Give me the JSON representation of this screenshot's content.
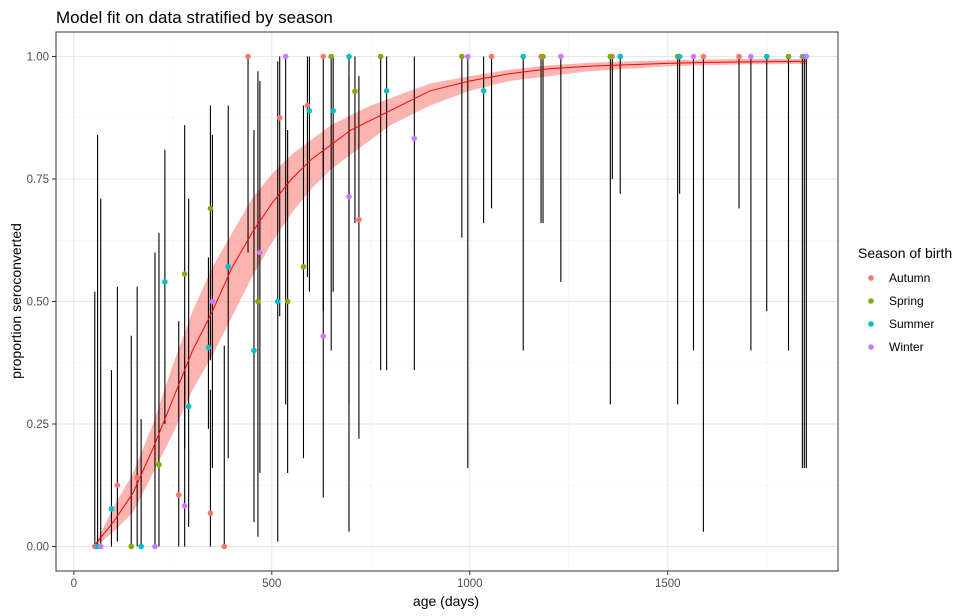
{
  "chart_data": {
    "type": "scatter",
    "title": "Model fit on data stratified by season",
    "xlabel": "age (days)",
    "ylabel": "proportion seroconverted",
    "xlim": [
      -45,
      1930
    ],
    "ylim": [
      -0.05,
      1.05
    ],
    "x_ticks": [
      0,
      500,
      1000,
      1500
    ],
    "y_ticks": [
      0.0,
      0.25,
      0.5,
      0.75,
      1.0
    ],
    "x_tick_labels": [
      "0",
      "500",
      "1000",
      "1500"
    ],
    "y_tick_labels": [
      "0.00",
      "0.25",
      "0.50",
      "0.75",
      "1.00"
    ],
    "grid": true,
    "legend": {
      "title": "Season of birth",
      "placement": "right",
      "entries": [
        {
          "name": "Autumn",
          "color": "#F8766D"
        },
        {
          "name": "Spring",
          "color": "#7CAE00"
        },
        {
          "name": "Summer",
          "color": "#00BFC4"
        },
        {
          "name": "Winter",
          "color": "#C77CFF"
        }
      ]
    },
    "fit": {
      "color": "#FF0000",
      "ribbon_color": "#F8766D",
      "x": [
        50,
        70,
        100,
        150,
        200,
        250,
        300,
        350,
        400,
        450,
        500,
        550,
        600,
        650,
        700,
        750,
        800,
        850,
        900,
        1000,
        1100,
        1200,
        1300,
        1400,
        1500,
        1600,
        1700,
        1850
      ],
      "y": [
        0.0,
        0.02,
        0.05,
        0.11,
        0.2,
        0.3,
        0.4,
        0.48,
        0.57,
        0.64,
        0.7,
        0.75,
        0.79,
        0.82,
        0.85,
        0.87,
        0.89,
        0.91,
        0.93,
        0.95,
        0.965,
        0.975,
        0.98,
        0.983,
        0.986,
        0.988,
        0.989,
        0.99
      ],
      "lower": [
        0.0,
        0.01,
        0.03,
        0.07,
        0.15,
        0.23,
        0.32,
        0.39,
        0.47,
        0.55,
        0.62,
        0.68,
        0.73,
        0.77,
        0.8,
        0.83,
        0.86,
        0.88,
        0.9,
        0.93,
        0.95,
        0.96,
        0.97,
        0.975,
        0.98,
        0.982,
        0.984,
        0.985
      ],
      "upper": [
        0.0,
        0.03,
        0.08,
        0.15,
        0.25,
        0.37,
        0.48,
        0.57,
        0.64,
        0.71,
        0.76,
        0.8,
        0.83,
        0.86,
        0.88,
        0.9,
        0.915,
        0.93,
        0.945,
        0.96,
        0.973,
        0.982,
        0.987,
        0.99,
        0.992,
        0.994,
        0.995,
        0.995
      ]
    },
    "series": [
      {
        "name": "Autumn",
        "color": "#F8766D",
        "points": [
          {
            "x": 53,
            "y": 0.0,
            "lo": 0.0,
            "hi": 0.52
          },
          {
            "x": 110,
            "y": 0.125,
            "lo": 0.01,
            "hi": 0.53
          },
          {
            "x": 160,
            "y": 0.14,
            "lo": 0.0,
            "hi": 0.53
          },
          {
            "x": 265,
            "y": 0.105,
            "lo": 0.0,
            "hi": 0.46
          },
          {
            "x": 345,
            "y": 0.068,
            "lo": 0.0,
            "hi": 0.32
          },
          {
            "x": 380,
            "y": 0.0,
            "lo": 0.0,
            "hi": 0.41
          },
          {
            "x": 440,
            "y": 1.0,
            "lo": 0.6,
            "hi": 1.0
          },
          {
            "x": 520,
            "y": 0.875,
            "lo": 0.47,
            "hi": 1.0
          },
          {
            "x": 590,
            "y": 0.9,
            "lo": 0.55,
            "hi": 1.0
          },
          {
            "x": 630,
            "y": 1.0,
            "lo": 0.48,
            "hi": 1.0
          },
          {
            "x": 720,
            "y": 0.667,
            "lo": 0.22,
            "hi": 0.96
          },
          {
            "x": 1055,
            "y": 1.0,
            "lo": 0.69,
            "hi": 1.0
          },
          {
            "x": 1180,
            "y": 1.0,
            "lo": 0.66,
            "hi": 1.0
          },
          {
            "x": 1360,
            "y": 1.0,
            "lo": 0.75,
            "hi": 1.0
          },
          {
            "x": 1590,
            "y": 1.0,
            "lo": 0.03,
            "hi": 1.0
          },
          {
            "x": 1680,
            "y": 1.0,
            "lo": 0.69,
            "hi": 1.0
          },
          {
            "x": 1840,
            "y": 1.0,
            "lo": 0.16,
            "hi": 1.0
          }
        ]
      },
      {
        "name": "Spring",
        "color": "#7CAE00",
        "points": [
          {
            "x": 145,
            "y": 0.0,
            "lo": 0.0,
            "hi": 0.43
          },
          {
            "x": 215,
            "y": 0.167,
            "lo": 0.0,
            "hi": 0.64
          },
          {
            "x": 280,
            "y": 0.556,
            "lo": 0.2,
            "hi": 0.86
          },
          {
            "x": 345,
            "y": 0.69,
            "lo": 0.38,
            "hi": 0.9
          },
          {
            "x": 465,
            "y": 0.5,
            "lo": 0.02,
            "hi": 0.97
          },
          {
            "x": 540,
            "y": 0.5,
            "lo": 0.15,
            "hi": 0.85
          },
          {
            "x": 580,
            "y": 0.571,
            "lo": 0.18,
            "hi": 0.9
          },
          {
            "x": 650,
            "y": 1.0,
            "lo": 0.4,
            "hi": 1.0
          },
          {
            "x": 710,
            "y": 0.929,
            "lo": 0.66,
            "hi": 1.0
          },
          {
            "x": 775,
            "y": 1.0,
            "lo": 0.36,
            "hi": 1.0
          },
          {
            "x": 980,
            "y": 1.0,
            "lo": 0.63,
            "hi": 1.0
          },
          {
            "x": 1185,
            "y": 1.0,
            "lo": 0.66,
            "hi": 1.0
          },
          {
            "x": 1355,
            "y": 1.0,
            "lo": 0.29,
            "hi": 1.0
          },
          {
            "x": 1525,
            "y": 1.0,
            "lo": 0.29,
            "hi": 1.0
          },
          {
            "x": 1805,
            "y": 1.0,
            "lo": 0.4,
            "hi": 1.0
          }
        ]
      },
      {
        "name": "Summer",
        "color": "#00BFC4",
        "points": [
          {
            "x": 60,
            "y": 0.0,
            "lo": 0.0,
            "hi": 0.84
          },
          {
            "x": 95,
            "y": 0.077,
            "lo": 0.0,
            "hi": 0.36
          },
          {
            "x": 170,
            "y": 0.0,
            "lo": 0.0,
            "hi": 0.26
          },
          {
            "x": 230,
            "y": 0.54,
            "lo": 0.25,
            "hi": 0.81
          },
          {
            "x": 290,
            "y": 0.286,
            "lo": 0.04,
            "hi": 0.71
          },
          {
            "x": 340,
            "y": 0.406,
            "lo": 0.24,
            "hi": 0.59
          },
          {
            "x": 390,
            "y": 0.571,
            "lo": 0.18,
            "hi": 0.9
          },
          {
            "x": 455,
            "y": 0.4,
            "lo": 0.05,
            "hi": 0.85
          },
          {
            "x": 515,
            "y": 0.5,
            "lo": 0.01,
            "hi": 0.99
          },
          {
            "x": 595,
            "y": 0.889,
            "lo": 0.52,
            "hi": 1.0
          },
          {
            "x": 655,
            "y": 0.889,
            "lo": 0.52,
            "hi": 1.0
          },
          {
            "x": 695,
            "y": 1.0,
            "lo": 0.03,
            "hi": 1.0
          },
          {
            "x": 790,
            "y": 0.93,
            "lo": 0.36,
            "hi": 1.0
          },
          {
            "x": 1135,
            "y": 1.0,
            "lo": 0.4,
            "hi": 1.0
          },
          {
            "x": 1380,
            "y": 1.0,
            "lo": 0.72,
            "hi": 1.0
          },
          {
            "x": 1035,
            "y": 0.93,
            "lo": 0.66,
            "hi": 1.0
          },
          {
            "x": 1530,
            "y": 1.0,
            "lo": 0.72,
            "hi": 1.0
          },
          {
            "x": 1750,
            "y": 1.0,
            "lo": 0.48,
            "hi": 1.0
          },
          {
            "x": 1845,
            "y": 1.0,
            "lo": 0.16,
            "hi": 1.0
          }
        ]
      },
      {
        "name": "Winter",
        "color": "#C77CFF",
        "points": [
          {
            "x": 68,
            "y": 0.0,
            "lo": 0.0,
            "hi": 0.71
          },
          {
            "x": 205,
            "y": 0.0,
            "lo": 0.0,
            "hi": 0.6
          },
          {
            "x": 280,
            "y": 0.083,
            "lo": 0.0,
            "hi": 0.38
          },
          {
            "x": 350,
            "y": 0.5,
            "lo": 0.16,
            "hi": 0.84
          },
          {
            "x": 470,
            "y": 0.6,
            "lo": 0.15,
            "hi": 0.95
          },
          {
            "x": 535,
            "y": 1.0,
            "lo": 0.29,
            "hi": 1.0
          },
          {
            "x": 630,
            "y": 0.429,
            "lo": 0.1,
            "hi": 0.82
          },
          {
            "x": 695,
            "y": 0.714,
            "lo": 0.29,
            "hi": 0.96
          },
          {
            "x": 860,
            "y": 0.833,
            "lo": 0.36,
            "hi": 1.0
          },
          {
            "x": 995,
            "y": 1.0,
            "lo": 0.16,
            "hi": 1.0
          },
          {
            "x": 1230,
            "y": 1.0,
            "lo": 0.54,
            "hi": 1.0
          },
          {
            "x": 1565,
            "y": 1.0,
            "lo": 0.4,
            "hi": 1.0
          },
          {
            "x": 1710,
            "y": 1.0,
            "lo": 0.4,
            "hi": 1.0
          },
          {
            "x": 1850,
            "y": 1.0,
            "lo": 0.16,
            "hi": 1.0
          }
        ]
      }
    ]
  }
}
